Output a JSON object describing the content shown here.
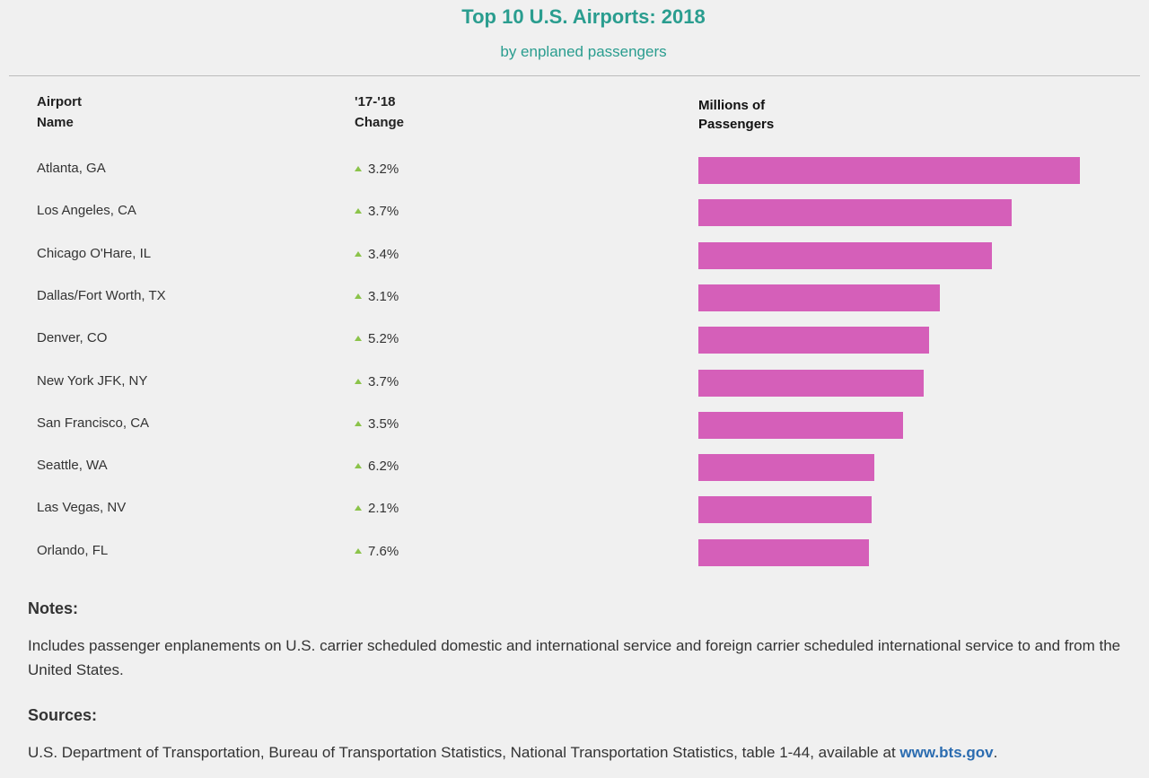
{
  "header": {
    "title": "Top 10 U.S. Airports: 2018",
    "subtitle": "by enplaned passengers"
  },
  "columns": {
    "airport_line1": "Airport",
    "airport_line2": "Name",
    "change_line1": "'17-'18",
    "change_line2": "Change",
    "millions_line1": "Millions of",
    "millions_line2": "Passengers"
  },
  "chart_data": {
    "type": "bar",
    "orientation": "horizontal",
    "title": "Top 10 U.S. Airports: 2018",
    "subtitle": "by enplaned passengers",
    "categories": [
      "Atlanta, GA",
      "Los Angeles, CA",
      "Chicago O'Hare, IL",
      "Dallas/Fort Worth, TX",
      "Denver, CO",
      "New York JFK, NY",
      "San Francisco, CA",
      "Seattle, WA",
      "Las Vegas, NV",
      "Orlando, FL"
    ],
    "change": [
      "3.2%",
      "3.7%",
      "3.4%",
      "3.1%",
      "5.2%",
      "3.7%",
      "3.5%",
      "6.2%",
      "2.1%",
      "7.6%"
    ],
    "change_direction": "up",
    "values": [
      51.9,
      42.6,
      39.9,
      32.8,
      31.4,
      30.6,
      27.8,
      23.9,
      23.6,
      23.2
    ],
    "value_label": "Millions of Passengers",
    "xlim": [
      0,
      52
    ],
    "bar_color": "#d55fb9",
    "grid": false
  },
  "notes": {
    "heading": "Notes:",
    "text": "Includes passenger enplanements on U.S. carrier scheduled domestic and international service and foreign carrier scheduled international service to and from the United States."
  },
  "sources": {
    "heading": "Sources:",
    "text": "U.S. Department of Transportation, Bureau of Transportation Statistics, National Transportation Statistics, table 1-44, available at ",
    "link": "www.bts.gov",
    "end": "."
  }
}
